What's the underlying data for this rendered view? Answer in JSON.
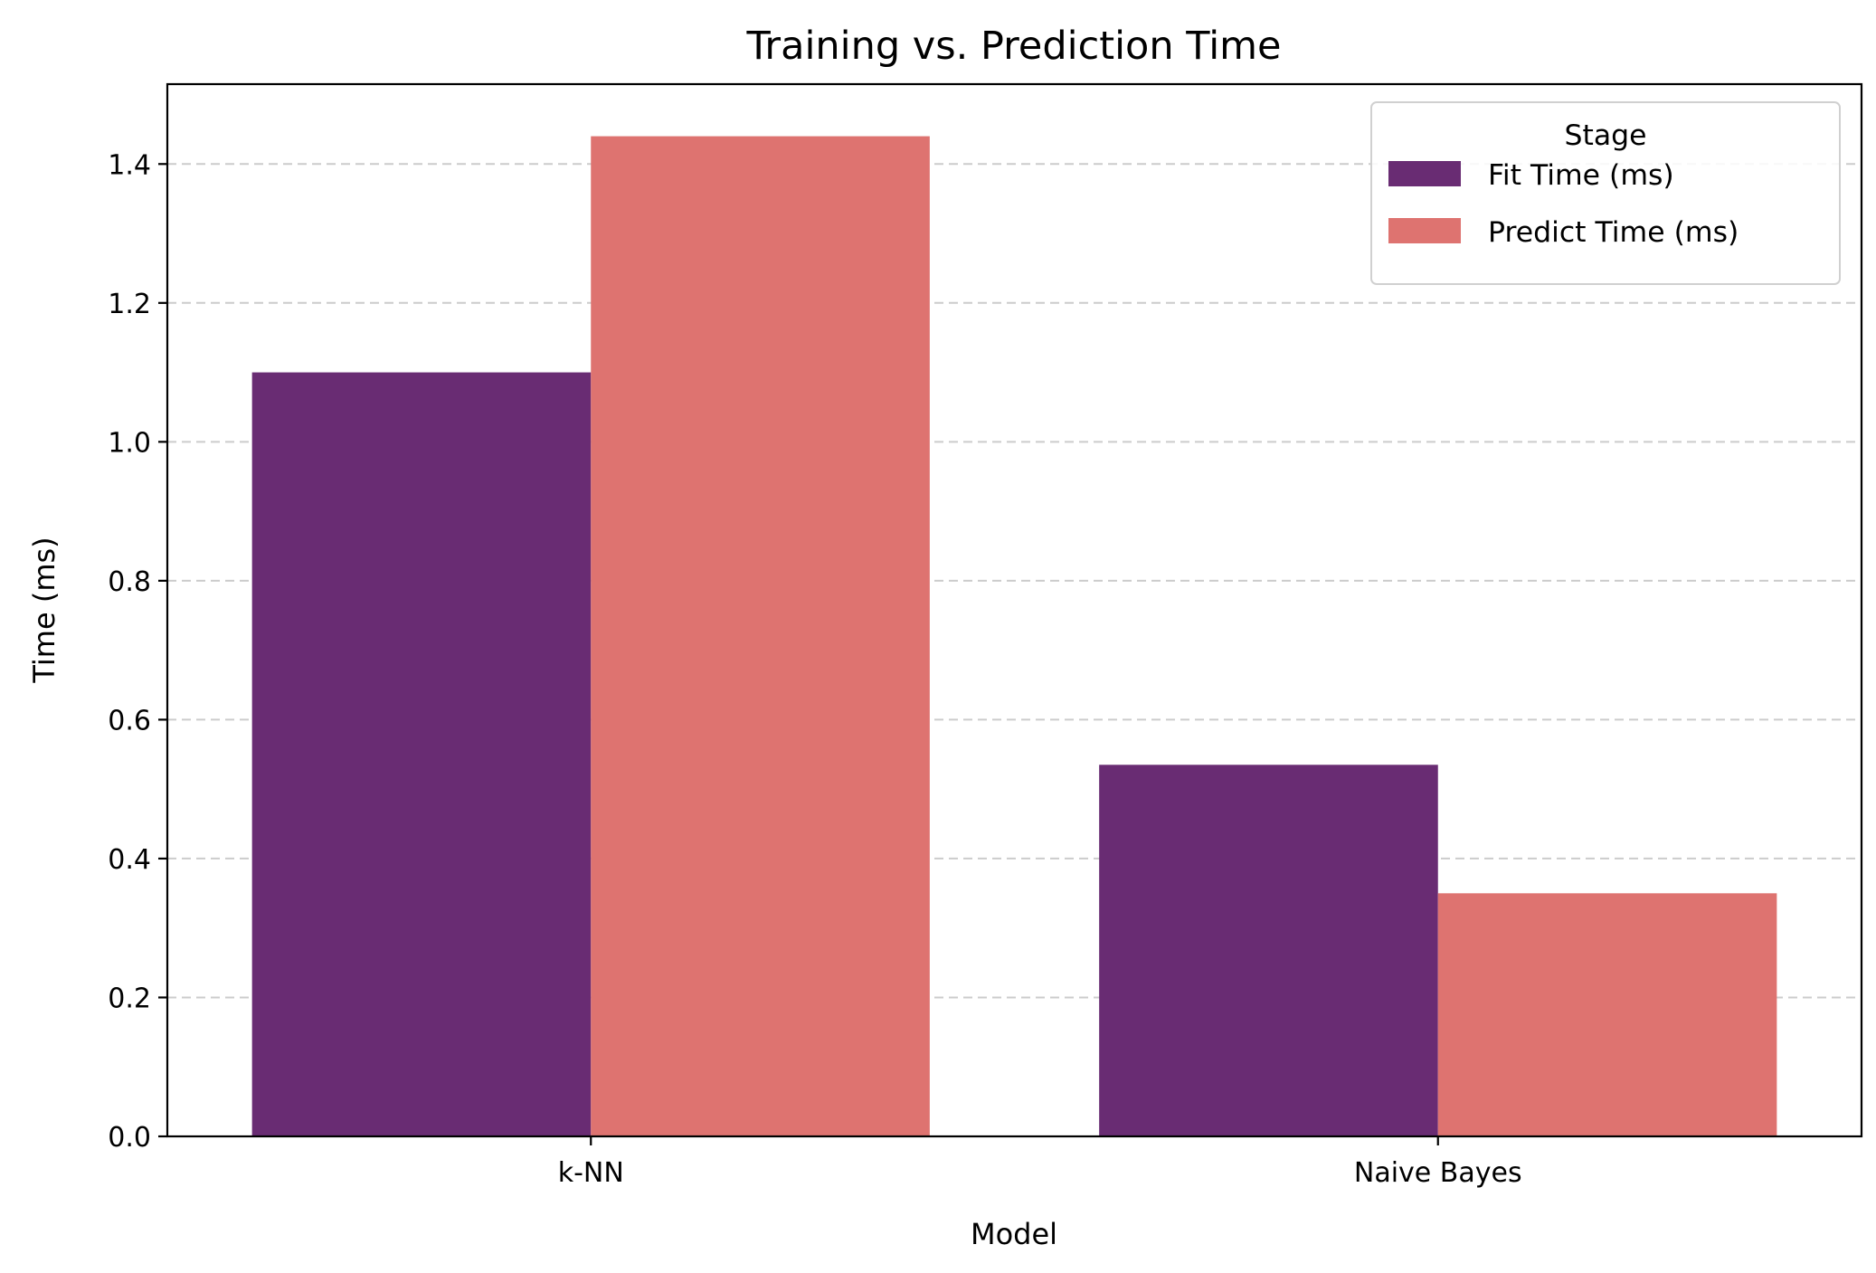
{
  "chart_data": {
    "type": "bar",
    "title": "Training vs. Prediction Time",
    "xlabel": "Model",
    "ylabel": "Time (ms)",
    "categories": [
      "k-NN",
      "Naive Bayes"
    ],
    "series": [
      {
        "name": "Fit Time (ms)",
        "values": [
          1.1,
          0.535
        ],
        "color": "#692c73"
      },
      {
        "name": "Predict Time (ms)",
        "values": [
          1.44,
          0.35
        ],
        "color": "#de7370"
      }
    ],
    "ylim": [
      0,
      1.515
    ],
    "yticks": [
      0.0,
      0.2,
      0.4,
      0.6,
      0.8,
      1.0,
      1.2,
      1.4
    ],
    "grid": "y-dashed",
    "legend": {
      "title": "Stage",
      "placement": "top-right"
    }
  }
}
